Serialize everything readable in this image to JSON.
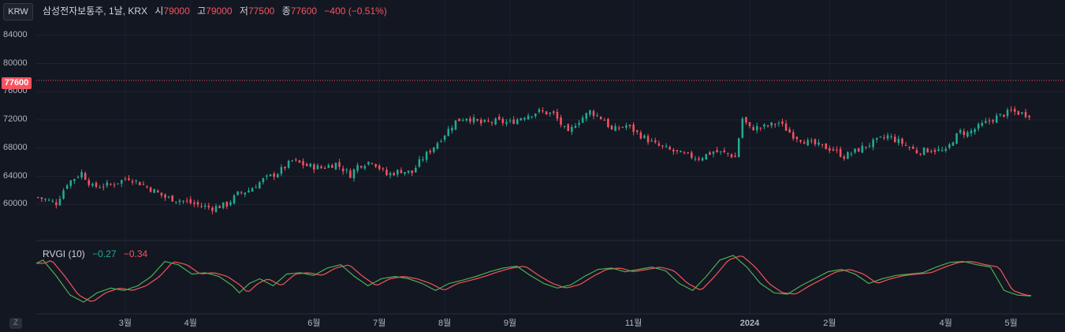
{
  "header": {
    "symbol": "삼성전자보통주, 1날, KRX",
    "open_label": "시",
    "open": "79000",
    "high_label": "고",
    "high": "79000",
    "low_label": "저",
    "low": "77500",
    "close_label": "종",
    "close": "77600",
    "change": "−400 (−0.51%)"
  },
  "currency": "KRW",
  "zoom_label": "Z",
  "last_price_label": "77600",
  "indicator": {
    "name": "RVGI (10)",
    "value1": "−0.27",
    "value2": "−0.34"
  },
  "colors": {
    "up": "#22ab94",
    "down": "#f7525f",
    "background": "#131722",
    "grid": "#1f2330",
    "signal": "#f7525f",
    "rvgi": "#4caf50"
  },
  "chart_data": {
    "type": "candlestick",
    "y_ticks": [
      "84000",
      "80000",
      "76000",
      "72000",
      "68000",
      "64000",
      "60000"
    ],
    "y_tick_values": [
      84000,
      80000,
      76000,
      72000,
      68000,
      64000,
      60000
    ],
    "ylim": [
      56000,
      87000
    ],
    "last_price": 77600,
    "x_ticks": [
      "3월",
      "4월",
      "6월",
      "7월",
      "8월",
      "9월",
      "11월",
      "2024",
      "2월",
      "4월",
      "5월"
    ],
    "x_tick_index": [
      24,
      42,
      76,
      94,
      112,
      130,
      164,
      196,
      218,
      250,
      268
    ],
    "n_days": 274,
    "anchors": [
      [
        0,
        61000
      ],
      [
        5,
        60200
      ],
      [
        8,
        63000
      ],
      [
        12,
        64500
      ],
      [
        15,
        62500
      ],
      [
        20,
        62800
      ],
      [
        25,
        63800
      ],
      [
        30,
        62500
      ],
      [
        35,
        61000
      ],
      [
        40,
        60500
      ],
      [
        45,
        59800
      ],
      [
        48,
        59500
      ],
      [
        52,
        60000
      ],
      [
        55,
        61500
      ],
      [
        58,
        62000
      ],
      [
        62,
        63500
      ],
      [
        66,
        64500
      ],
      [
        70,
        66200
      ],
      [
        74,
        65500
      ],
      [
        78,
        65200
      ],
      [
        82,
        65800
      ],
      [
        86,
        64200
      ],
      [
        88,
        65500
      ],
      [
        92,
        66200
      ],
      [
        96,
        64200
      ],
      [
        100,
        64800
      ],
      [
        103,
        64500
      ],
      [
        105,
        66000
      ],
      [
        110,
        68800
      ],
      [
        115,
        71800
      ],
      [
        118,
        72400
      ],
      [
        122,
        71500
      ],
      [
        126,
        71800
      ],
      [
        130,
        71600
      ],
      [
        134,
        72600
      ],
      [
        138,
        73200
      ],
      [
        142,
        72800
      ],
      [
        146,
        70000
      ],
      [
        148,
        71500
      ],
      [
        152,
        73200
      ],
      [
        156,
        72000
      ],
      [
        158,
        70500
      ],
      [
        162,
        71200
      ],
      [
        166,
        69800
      ],
      [
        170,
        68500
      ],
      [
        174,
        67700
      ],
      [
        178,
        67000
      ],
      [
        182,
        66600
      ],
      [
        186,
        67500
      ],
      [
        190,
        67200
      ],
      [
        192,
        66700
      ],
      [
        194,
        72200
      ],
      [
        196,
        70800
      ],
      [
        200,
        71000
      ],
      [
        204,
        71600
      ],
      [
        208,
        69800
      ],
      [
        212,
        68800
      ],
      [
        216,
        68200
      ],
      [
        219,
        67800
      ],
      [
        222,
        66800
      ],
      [
        226,
        67800
      ],
      [
        230,
        68800
      ],
      [
        234,
        69700
      ],
      [
        238,
        68700
      ],
      [
        242,
        67500
      ],
      [
        246,
        67800
      ],
      [
        250,
        67500
      ],
      [
        252,
        69200
      ],
      [
        254,
        70300
      ],
      [
        256,
        70100
      ],
      [
        260,
        71300
      ],
      [
        264,
        72400
      ],
      [
        268,
        73200
      ],
      [
        272,
        72800
      ]
    ],
    "rvgi_anchors": [
      [
        0,
        0.38
      ],
      [
        2,
        0.45
      ],
      [
        6,
        0.1
      ],
      [
        10,
        -0.3
      ],
      [
        14,
        -0.45
      ],
      [
        18,
        -0.25
      ],
      [
        22,
        -0.15
      ],
      [
        26,
        -0.2
      ],
      [
        30,
        -0.1
      ],
      [
        34,
        0.1
      ],
      [
        38,
        0.42
      ],
      [
        42,
        0.35
      ],
      [
        46,
        0.15
      ],
      [
        50,
        0.18
      ],
      [
        54,
        0.1
      ],
      [
        58,
        -0.1
      ],
      [
        60,
        -0.25
      ],
      [
        63,
        -0.05
      ],
      [
        66,
        0.05
      ],
      [
        70,
        -0.1
      ],
      [
        74,
        0.15
      ],
      [
        78,
        0.18
      ],
      [
        82,
        0.12
      ],
      [
        86,
        0.28
      ],
      [
        90,
        0.35
      ],
      [
        94,
        0.1
      ],
      [
        98,
        -0.1
      ],
      [
        102,
        0.05
      ],
      [
        106,
        0.1
      ],
      [
        110,
        0.05
      ],
      [
        114,
        -0.05
      ],
      [
        118,
        -0.2
      ],
      [
        122,
        -0.05
      ],
      [
        126,
        0.02
      ],
      [
        130,
        0.1
      ],
      [
        134,
        0.2
      ],
      [
        138,
        0.28
      ],
      [
        142,
        0.32
      ],
      [
        146,
        0.12
      ],
      [
        150,
        -0.05
      ],
      [
        154,
        -0.15
      ],
      [
        158,
        -0.08
      ],
      [
        162,
        0.1
      ],
      [
        166,
        0.25
      ],
      [
        170,
        0.28
      ],
      [
        174,
        0.2
      ],
      [
        178,
        0.25
      ],
      [
        182,
        0.3
      ],
      [
        186,
        0.22
      ],
      [
        190,
        -0.05
      ],
      [
        194,
        -0.2
      ],
      [
        198,
        0.1
      ],
      [
        202,
        0.45
      ],
      [
        206,
        0.55
      ],
      [
        210,
        0.3
      ],
      [
        214,
        -0.05
      ],
      [
        218,
        -0.25
      ],
      [
        222,
        -0.28
      ],
      [
        226,
        -0.1
      ],
      [
        230,
        0.05
      ],
      [
        234,
        0.2
      ],
      [
        238,
        0.25
      ],
      [
        242,
        0.15
      ],
      [
        246,
        -0.05
      ],
      [
        250,
        0.05
      ],
      [
        254,
        0.12
      ],
      [
        258,
        0.15
      ],
      [
        262,
        0.18
      ],
      [
        266,
        0.3
      ],
      [
        270,
        0.4
      ],
      [
        274,
        0.42
      ],
      [
        278,
        0.35
      ],
      [
        282,
        0.3
      ],
      [
        286,
        -0.2
      ],
      [
        290,
        -0.3
      ],
      [
        294,
        -0.32
      ]
    ],
    "rvgi_ylim": [
      -0.6,
      0.75
    ]
  }
}
